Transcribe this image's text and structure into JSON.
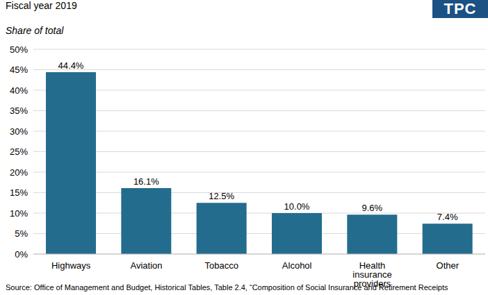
{
  "chart_data": {
    "type": "bar",
    "subtitle": "Fiscal year 2019",
    "logo": "TPC",
    "y_label": "Share of total",
    "source": "Source: Office of Management and Budget, Historical Tables, Table 2.4, “Composition of Social Insurance and Retirement Receipts",
    "categories": [
      "Highways",
      "Aviation",
      "Tobacco",
      "Alcohol",
      "Health insurance providers",
      "Other"
    ],
    "values": [
      44.4,
      16.1,
      12.5,
      10.0,
      9.6,
      7.4
    ],
    "value_labels": [
      "44.4%",
      "16.1%",
      "12.5%",
      "10.0%",
      "9.6%",
      "7.4%"
    ],
    "color": "#236c8e",
    "ylim": [
      0,
      50
    ],
    "yticks": [
      {
        "value": 0,
        "label": "0%"
      },
      {
        "value": 5,
        "label": "5%"
      },
      {
        "value": 10,
        "label": "10%"
      },
      {
        "value": 15,
        "label": "15%"
      },
      {
        "value": 20,
        "label": "20%"
      },
      {
        "value": 25,
        "label": "25%"
      },
      {
        "value": 30,
        "label": "30%"
      },
      {
        "value": 35,
        "label": "35%"
      },
      {
        "value": 40,
        "label": "40%"
      },
      {
        "value": 45,
        "label": "45%"
      },
      {
        "value": 50,
        "label": "50%"
      }
    ],
    "grid": true,
    "data_labels": true
  }
}
